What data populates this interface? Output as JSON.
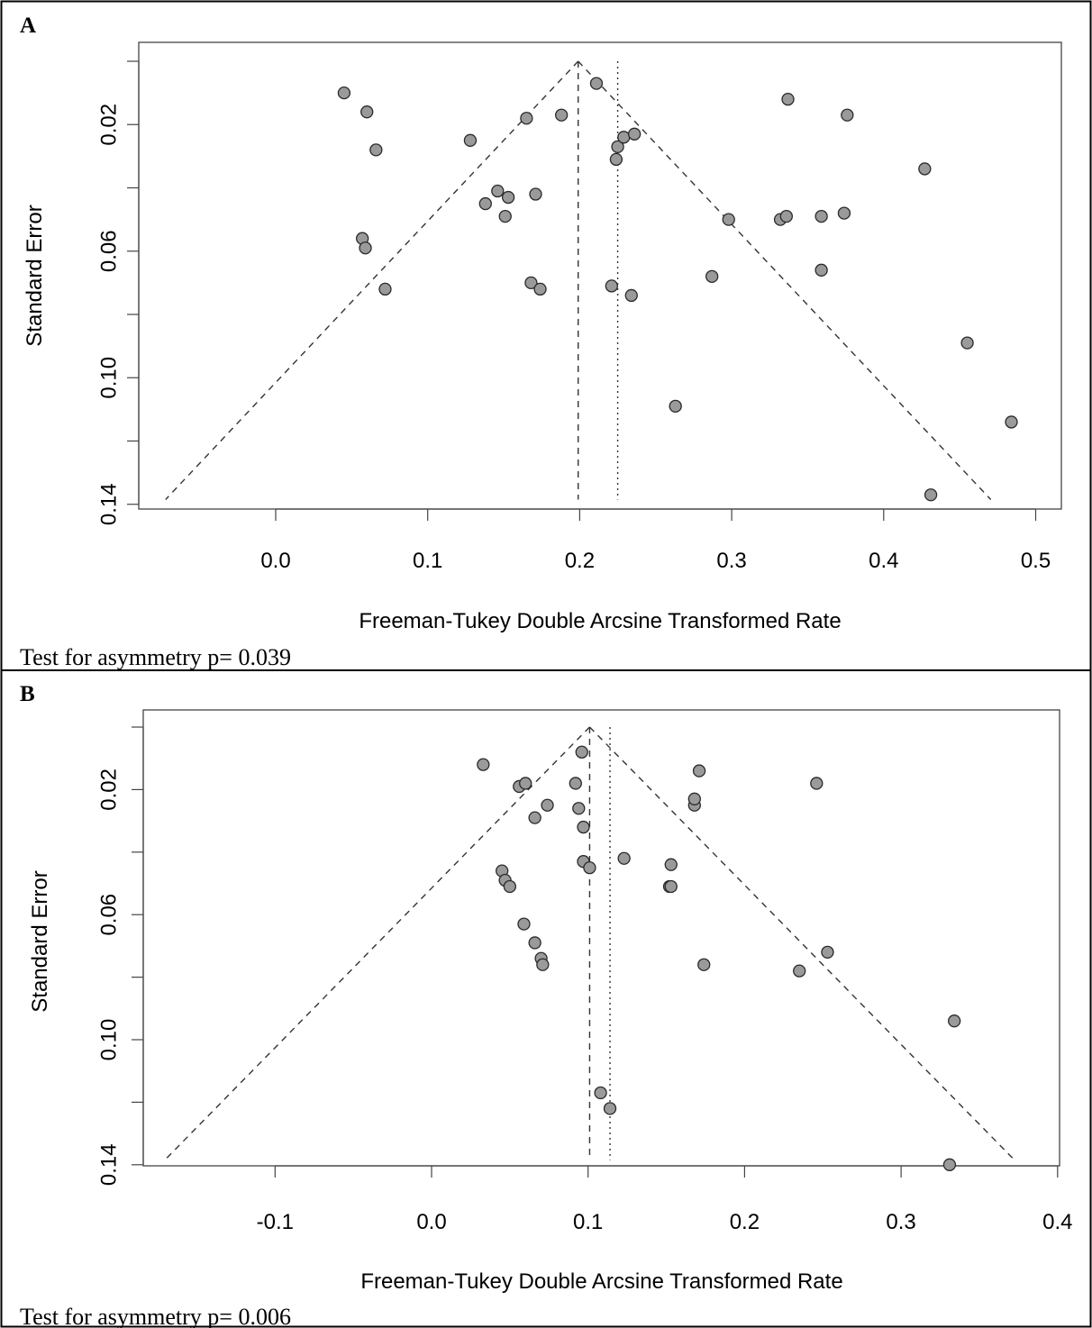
{
  "chart_data": [
    {
      "type": "scatter",
      "panel": "A",
      "xlabel": "Freeman-Tukey Double Arcsine Transformed Rate",
      "ylabel": "Standard Error",
      "caption": "Test for asymmetry p= 0.039",
      "xlim": [
        -0.09,
        0.52
      ],
      "ylim": [
        0.142,
        0.0
      ],
      "x_ticks": [
        "0.0",
        "0.1",
        "0.2",
        "0.3",
        "0.4",
        "0.5"
      ],
      "y_ticks": [
        "0.02",
        "0.06",
        "0.10",
        "0.14"
      ],
      "fixed_effect_estimate": 0.199,
      "random_effect_estimate": 0.225,
      "points": [
        {
          "x": 0.045,
          "y": 0.01
        },
        {
          "x": 0.06,
          "y": 0.016
        },
        {
          "x": 0.066,
          "y": 0.028
        },
        {
          "x": 0.057,
          "y": 0.056
        },
        {
          "x": 0.059,
          "y": 0.059
        },
        {
          "x": 0.072,
          "y": 0.072
        },
        {
          "x": 0.128,
          "y": 0.025
        },
        {
          "x": 0.138,
          "y": 0.045
        },
        {
          "x": 0.146,
          "y": 0.041
        },
        {
          "x": 0.151,
          "y": 0.049
        },
        {
          "x": 0.153,
          "y": 0.043
        },
        {
          "x": 0.165,
          "y": 0.018
        },
        {
          "x": 0.168,
          "y": 0.07
        },
        {
          "x": 0.171,
          "y": 0.042
        },
        {
          "x": 0.174,
          "y": 0.072
        },
        {
          "x": 0.188,
          "y": 0.017
        },
        {
          "x": 0.211,
          "y": 0.007
        },
        {
          "x": 0.221,
          "y": 0.071
        },
        {
          "x": 0.224,
          "y": 0.031
        },
        {
          "x": 0.225,
          "y": 0.027
        },
        {
          "x": 0.229,
          "y": 0.024
        },
        {
          "x": 0.234,
          "y": 0.074
        },
        {
          "x": 0.236,
          "y": 0.023
        },
        {
          "x": 0.263,
          "y": 0.109
        },
        {
          "x": 0.287,
          "y": 0.068
        },
        {
          "x": 0.298,
          "y": 0.05
        },
        {
          "x": 0.332,
          "y": 0.05
        },
        {
          "x": 0.336,
          "y": 0.049
        },
        {
          "x": 0.337,
          "y": 0.012
        },
        {
          "x": 0.359,
          "y": 0.049
        },
        {
          "x": 0.359,
          "y": 0.066
        },
        {
          "x": 0.374,
          "y": 0.048
        },
        {
          "x": 0.376,
          "y": 0.017
        },
        {
          "x": 0.427,
          "y": 0.034
        },
        {
          "x": 0.431,
          "y": 0.137
        },
        {
          "x": 0.455,
          "y": 0.089
        },
        {
          "x": 0.484,
          "y": 0.114
        }
      ]
    },
    {
      "type": "scatter",
      "panel": "B",
      "xlabel": "Freeman-Tukey Double Arcsine Transformed Rate",
      "ylabel": "Standard Error",
      "caption": "Test for asymmetry p= 0.006",
      "xlim": [
        -0.175,
        0.405
      ],
      "ylim": [
        0.142,
        0.0
      ],
      "x_ticks": [
        "-0.1",
        "0.0",
        "0.1",
        "0.2",
        "0.3",
        "0.4"
      ],
      "y_ticks": [
        "0.02",
        "0.06",
        "0.10",
        "0.14"
      ],
      "fixed_effect_estimate": 0.101,
      "random_effect_estimate": 0.114,
      "points": [
        {
          "x": 0.033,
          "y": 0.012
        },
        {
          "x": 0.056,
          "y": 0.019
        },
        {
          "x": 0.06,
          "y": 0.018
        },
        {
          "x": 0.074,
          "y": 0.025
        },
        {
          "x": 0.066,
          "y": 0.029
        },
        {
          "x": 0.045,
          "y": 0.046
        },
        {
          "x": 0.047,
          "y": 0.049
        },
        {
          "x": 0.05,
          "y": 0.051
        },
        {
          "x": 0.059,
          "y": 0.063
        },
        {
          "x": 0.066,
          "y": 0.069
        },
        {
          "x": 0.07,
          "y": 0.074
        },
        {
          "x": 0.071,
          "y": 0.076
        },
        {
          "x": 0.092,
          "y": 0.018
        },
        {
          "x": 0.096,
          "y": 0.008
        },
        {
          "x": 0.094,
          "y": 0.026
        },
        {
          "x": 0.097,
          "y": 0.032
        },
        {
          "x": 0.097,
          "y": 0.043
        },
        {
          "x": 0.101,
          "y": 0.045
        },
        {
          "x": 0.108,
          "y": 0.117
        },
        {
          "x": 0.114,
          "y": 0.122
        },
        {
          "x": 0.123,
          "y": 0.042
        },
        {
          "x": 0.152,
          "y": 0.051
        },
        {
          "x": 0.153,
          "y": 0.051
        },
        {
          "x": 0.153,
          "y": 0.044
        },
        {
          "x": 0.168,
          "y": 0.025
        },
        {
          "x": 0.168,
          "y": 0.023
        },
        {
          "x": 0.171,
          "y": 0.014
        },
        {
          "x": 0.174,
          "y": 0.076
        },
        {
          "x": 0.235,
          "y": 0.078
        },
        {
          "x": 0.246,
          "y": 0.018
        },
        {
          "x": 0.253,
          "y": 0.072
        },
        {
          "x": 0.331,
          "y": 0.14
        },
        {
          "x": 0.334,
          "y": 0.094
        }
      ]
    }
  ]
}
